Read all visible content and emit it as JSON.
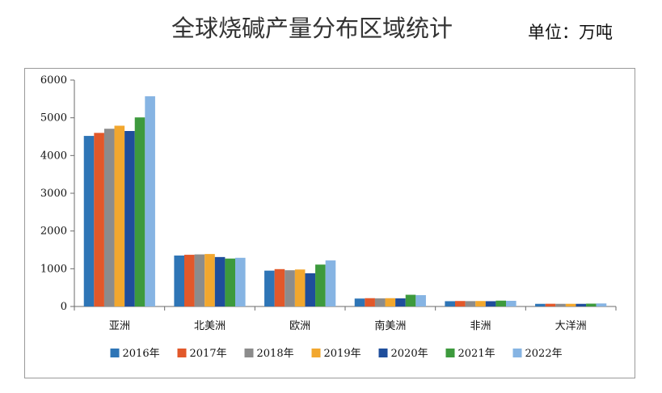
{
  "header": {
    "title": "全球烧碱产量分布区域统计",
    "unit": "单位：万吨"
  },
  "chart_data": {
    "type": "bar",
    "title": "",
    "xlabel": "",
    "ylabel": "",
    "ylim": [
      0,
      6000
    ],
    "yticks": [
      0,
      1000,
      2000,
      3000,
      4000,
      5000,
      6000
    ],
    "grid": false,
    "legend_position": "bottom",
    "categories": [
      "亚洲",
      "北美洲",
      "欧洲",
      "南美洲",
      "非洲",
      "大洋洲"
    ],
    "series": [
      {
        "name": "2016年",
        "color": "#2e75b6",
        "values": [
          4520,
          1350,
          950,
          210,
          140,
          70
        ]
      },
      {
        "name": "2017年",
        "color": "#e2582a",
        "values": [
          4600,
          1370,
          990,
          220,
          145,
          72
        ]
      },
      {
        "name": "2018年",
        "color": "#8c8c8c",
        "values": [
          4710,
          1380,
          960,
          215,
          142,
          70
        ]
      },
      {
        "name": "2019年",
        "color": "#f2a72e",
        "values": [
          4790,
          1390,
          980,
          220,
          145,
          71
        ]
      },
      {
        "name": "2020年",
        "color": "#1f4e9c",
        "values": [
          4650,
          1310,
          880,
          215,
          140,
          70
        ]
      },
      {
        "name": "2021年",
        "color": "#3d9a3d",
        "values": [
          5010,
          1270,
          1110,
          310,
          155,
          75
        ]
      },
      {
        "name": "2022年",
        "color": "#86b4e3",
        "values": [
          5570,
          1290,
          1220,
          300,
          150,
          80
        ]
      }
    ]
  }
}
